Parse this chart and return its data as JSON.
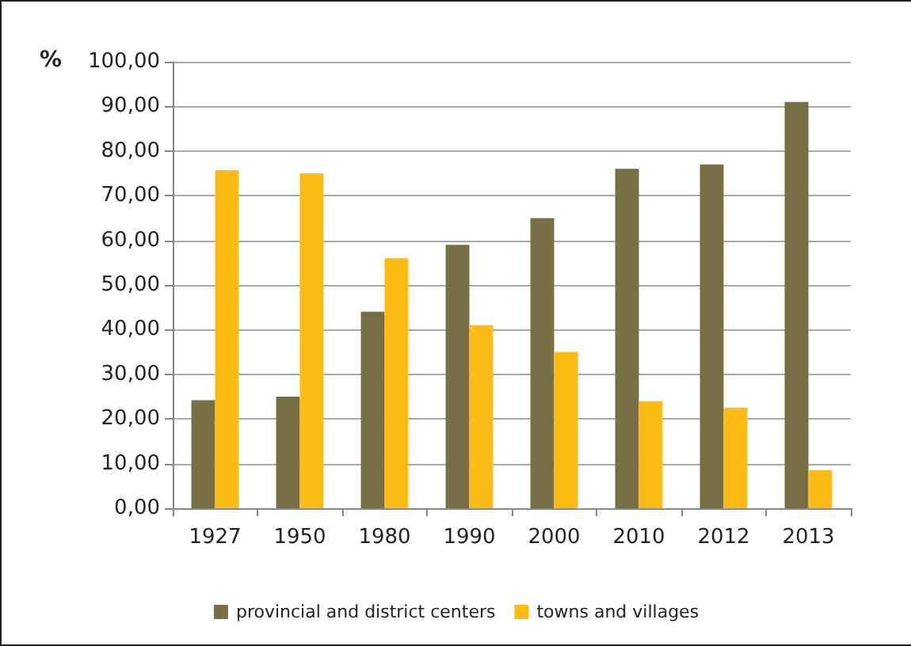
{
  "chart_data": {
    "type": "bar",
    "ylabel": "%",
    "categories": [
      "1927",
      "1950",
      "1980",
      "1990",
      "2000",
      "2010",
      "2012",
      "2013"
    ],
    "series": [
      {
        "name": "provincial and district centers",
        "color": "#787044",
        "values": [
          24.2,
          25,
          44,
          59,
          65,
          76,
          77,
          91
        ]
      },
      {
        "name": "towns and villages",
        "color": "#fdbb16",
        "values": [
          75.7,
          75,
          56,
          41,
          35,
          24,
          22.5,
          8.5
        ]
      }
    ],
    "ylim": [
      0,
      100
    ],
    "yticks": [
      {
        "value": 0,
        "label": "0,00"
      },
      {
        "value": 10,
        "label": "10,00"
      },
      {
        "value": 20,
        "label": "20,00"
      },
      {
        "value": 30,
        "label": "30,00"
      },
      {
        "value": 40,
        "label": "40,00"
      },
      {
        "value": 50,
        "label": "50,00"
      },
      {
        "value": 60,
        "label": "60,00"
      },
      {
        "value": 70,
        "label": "70,00"
      },
      {
        "value": 80,
        "label": "80,00"
      },
      {
        "value": 90,
        "label": "90,00"
      },
      {
        "value": 100,
        "label": "100,00"
      }
    ],
    "grid": "y",
    "legend": "bottom"
  }
}
